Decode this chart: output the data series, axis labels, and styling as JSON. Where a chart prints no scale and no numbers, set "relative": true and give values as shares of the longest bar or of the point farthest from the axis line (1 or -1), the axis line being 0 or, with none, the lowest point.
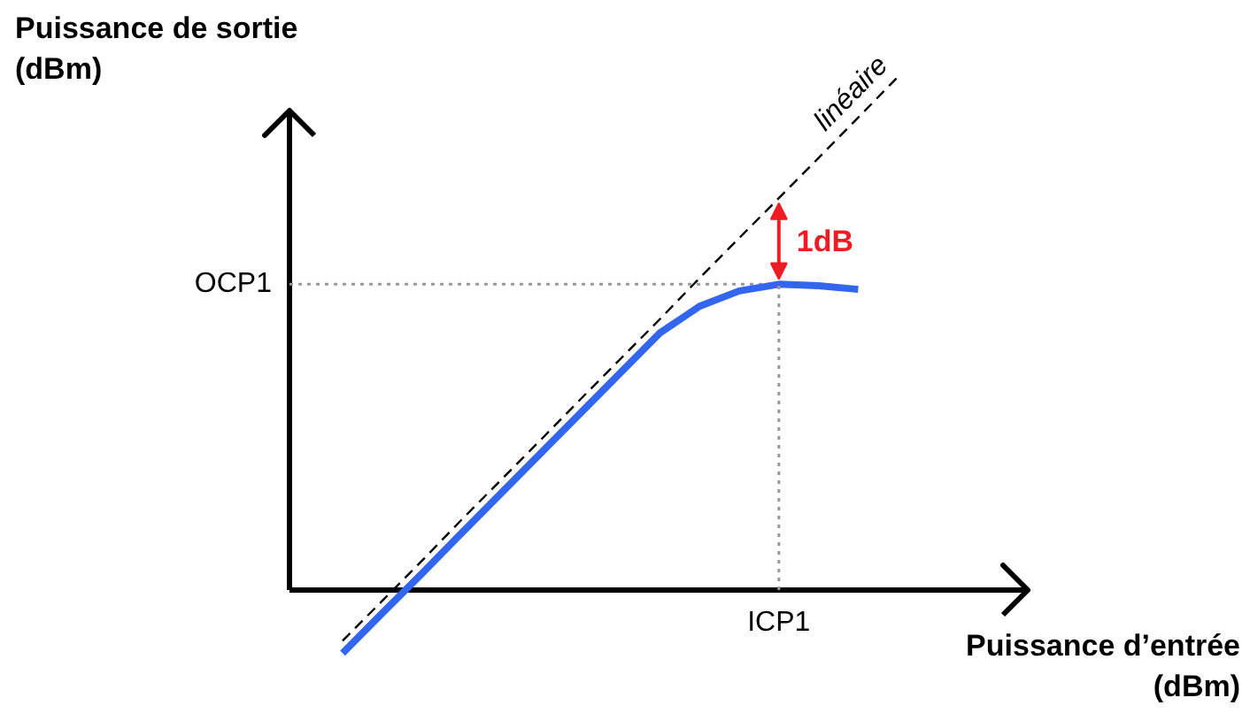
{
  "chart_data": {
    "type": "line",
    "relative": true,
    "xlabel": "Puissance d’entrée (dBm)",
    "ylabel": "Puissance de sortie (dBm)",
    "categories": [
      null,
      null,
      null,
      null,
      null,
      null,
      null,
      null,
      null,
      null,
      null,
      null,
      null,
      null,
      null
    ],
    "series": [
      {
        "name": "linéaire",
        "color": "#000000",
        "line_style": "dashed",
        "values": [
          -0.099,
          -0.021,
          0.057,
          0.137,
          0.215,
          0.293,
          0.372,
          0.45,
          0.528,
          0.608,
          0.686,
          0.764,
          0.842,
          0.921,
          1.0
        ]
      },
      {
        "color": "#3366ee",
        "line_style": "solid",
        "values": [
          -0.123,
          -0.045,
          0.032,
          0.111,
          0.189,
          0.267,
          0.345,
          0.423,
          0.501,
          0.553,
          0.583,
          0.596,
          0.593,
          0.586,
          null
        ]
      }
    ],
    "ref_lines": [
      {
        "axis": "y",
        "value": 0.596,
        "label": "OCP1",
        "color": "#999999",
        "line_style": "dotted"
      }
    ],
    "annotations": [
      "ICP1",
      "1dB"
    ],
    "grid": false,
    "marker": "none"
  }
}
